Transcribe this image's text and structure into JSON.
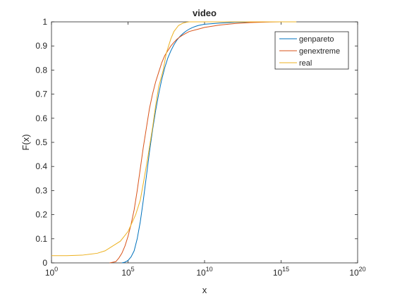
{
  "chart_data": {
    "type": "line",
    "title": "video",
    "xlabel": "x",
    "ylabel": "F(x)",
    "xscale": "log",
    "xlim": [
      1,
      1e+20
    ],
    "ylim": [
      0,
      1
    ],
    "xticks": [
      {
        "value": 1,
        "base": "10",
        "exp": "0"
      },
      {
        "value": 100000,
        "base": "10",
        "exp": "5"
      },
      {
        "value": 10000000000,
        "base": "10",
        "exp": "10"
      },
      {
        "value": 1000000000000000,
        "base": "10",
        "exp": "15"
      },
      {
        "value": 100000000000000000000,
        "base": "10",
        "exp": "20"
      }
    ],
    "yticks": [
      "0",
      "0.1",
      "0.2",
      "0.3",
      "0.4",
      "0.5",
      "0.6",
      "0.7",
      "0.8",
      "0.9",
      "1"
    ],
    "grid": false,
    "legend_position": "top-right",
    "series": [
      {
        "name": "genpareto",
        "color": "#0072BD",
        "x": [
          39811,
          63096,
          100000,
          158489,
          251189,
          398107,
          630957,
          1000000,
          1584893,
          2511886,
          3981072,
          6309573,
          10000000,
          15848932,
          25118864,
          39810717,
          63095734,
          100000000,
          158489319,
          251188643,
          398107171,
          630957344,
          1000000000,
          1584893192,
          2511886432,
          3981071706,
          10000000000,
          100000000000,
          1000000000000,
          10000000000000,
          100000000000000,
          1000000000000000
        ],
        "y": [
          0.0,
          0.003,
          0.01,
          0.025,
          0.05,
          0.1,
          0.17,
          0.26,
          0.36,
          0.46,
          0.55,
          0.63,
          0.7,
          0.76,
          0.81,
          0.85,
          0.88,
          0.905,
          0.925,
          0.94,
          0.952,
          0.962,
          0.97,
          0.976,
          0.981,
          0.985,
          0.99,
          0.995,
          0.998,
          0.999,
          1.0,
          1.0
        ]
      },
      {
        "name": "genextreme",
        "color": "#D95319",
        "x": [
          6310,
          15849,
          25119,
          39811,
          63096,
          100000,
          158489,
          251189,
          398107,
          630957,
          1000000,
          1584893,
          2511886,
          3981072,
          6309573,
          10000000,
          15848932,
          25118864,
          39810717,
          63095734,
          100000000,
          158489319,
          251188643,
          398107171,
          630957344,
          1000000000,
          3981071706,
          10000000000,
          100000000000,
          1000000000000,
          10000000000000,
          100000000000000,
          1000000000000000,
          2511886431509580
        ],
        "y": [
          0.0,
          0.005,
          0.02,
          0.04,
          0.07,
          0.11,
          0.16,
          0.22,
          0.3,
          0.39,
          0.48,
          0.56,
          0.64,
          0.7,
          0.75,
          0.79,
          0.83,
          0.86,
          0.88,
          0.9,
          0.915,
          0.928,
          0.938,
          0.946,
          0.953,
          0.96,
          0.97,
          0.977,
          0.987,
          0.993,
          0.997,
          0.999,
          1.0,
          1.0
        ]
      },
      {
        "name": "real",
        "color": "#EDB120",
        "x": [
          1,
          10,
          100,
          1000,
          3162,
          10000,
          31623,
          100000,
          316228,
          630957,
          1000000,
          1995262,
          3981072,
          6309573,
          10000000,
          19952623,
          31622777,
          63095734,
          100000000,
          199526231,
          398107171,
          630957344,
          1000000000,
          3981071706,
          10000000000,
          1000000000000000,
          10000000000000000
        ],
        "y": [
          0.03,
          0.03,
          0.032,
          0.04,
          0.05,
          0.07,
          0.09,
          0.13,
          0.2,
          0.26,
          0.33,
          0.44,
          0.56,
          0.65,
          0.73,
          0.8,
          0.87,
          0.93,
          0.96,
          0.985,
          0.995,
          0.998,
          1.0,
          1.0,
          1.0,
          1.0,
          1.0
        ]
      }
    ]
  }
}
